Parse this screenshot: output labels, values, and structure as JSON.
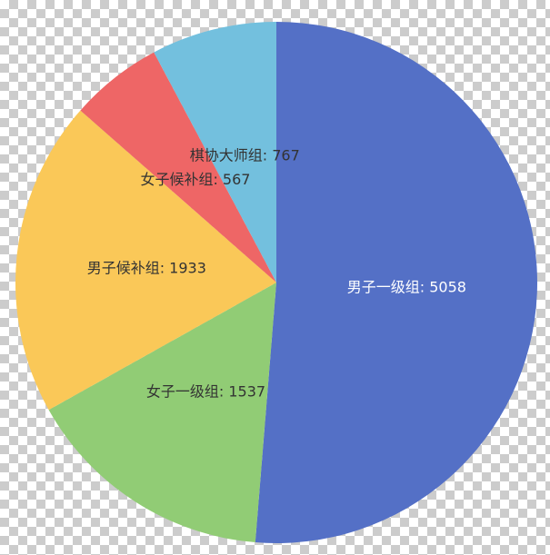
{
  "chart_data": {
    "type": "pie",
    "title": "",
    "slices": [
      {
        "label": "男子一级组",
        "value": 5058,
        "color": "#5470c6",
        "text_color": "#ffffff"
      },
      {
        "label": "女子一级组",
        "value": 1537,
        "color": "#91cc75",
        "text_color": "#333333"
      },
      {
        "label": "男子候补组",
        "value": 1933,
        "color": "#fac858",
        "text_color": "#333333"
      },
      {
        "label": "女子候补组",
        "value": 567,
        "color": "#ee6666",
        "text_color": "#333333"
      },
      {
        "label": "棋协大师组",
        "value": 767,
        "color": "#73c0de",
        "text_color": "#333333"
      }
    ],
    "label_format": "{name}: {value}",
    "start": "top",
    "direction": "clockwise"
  }
}
